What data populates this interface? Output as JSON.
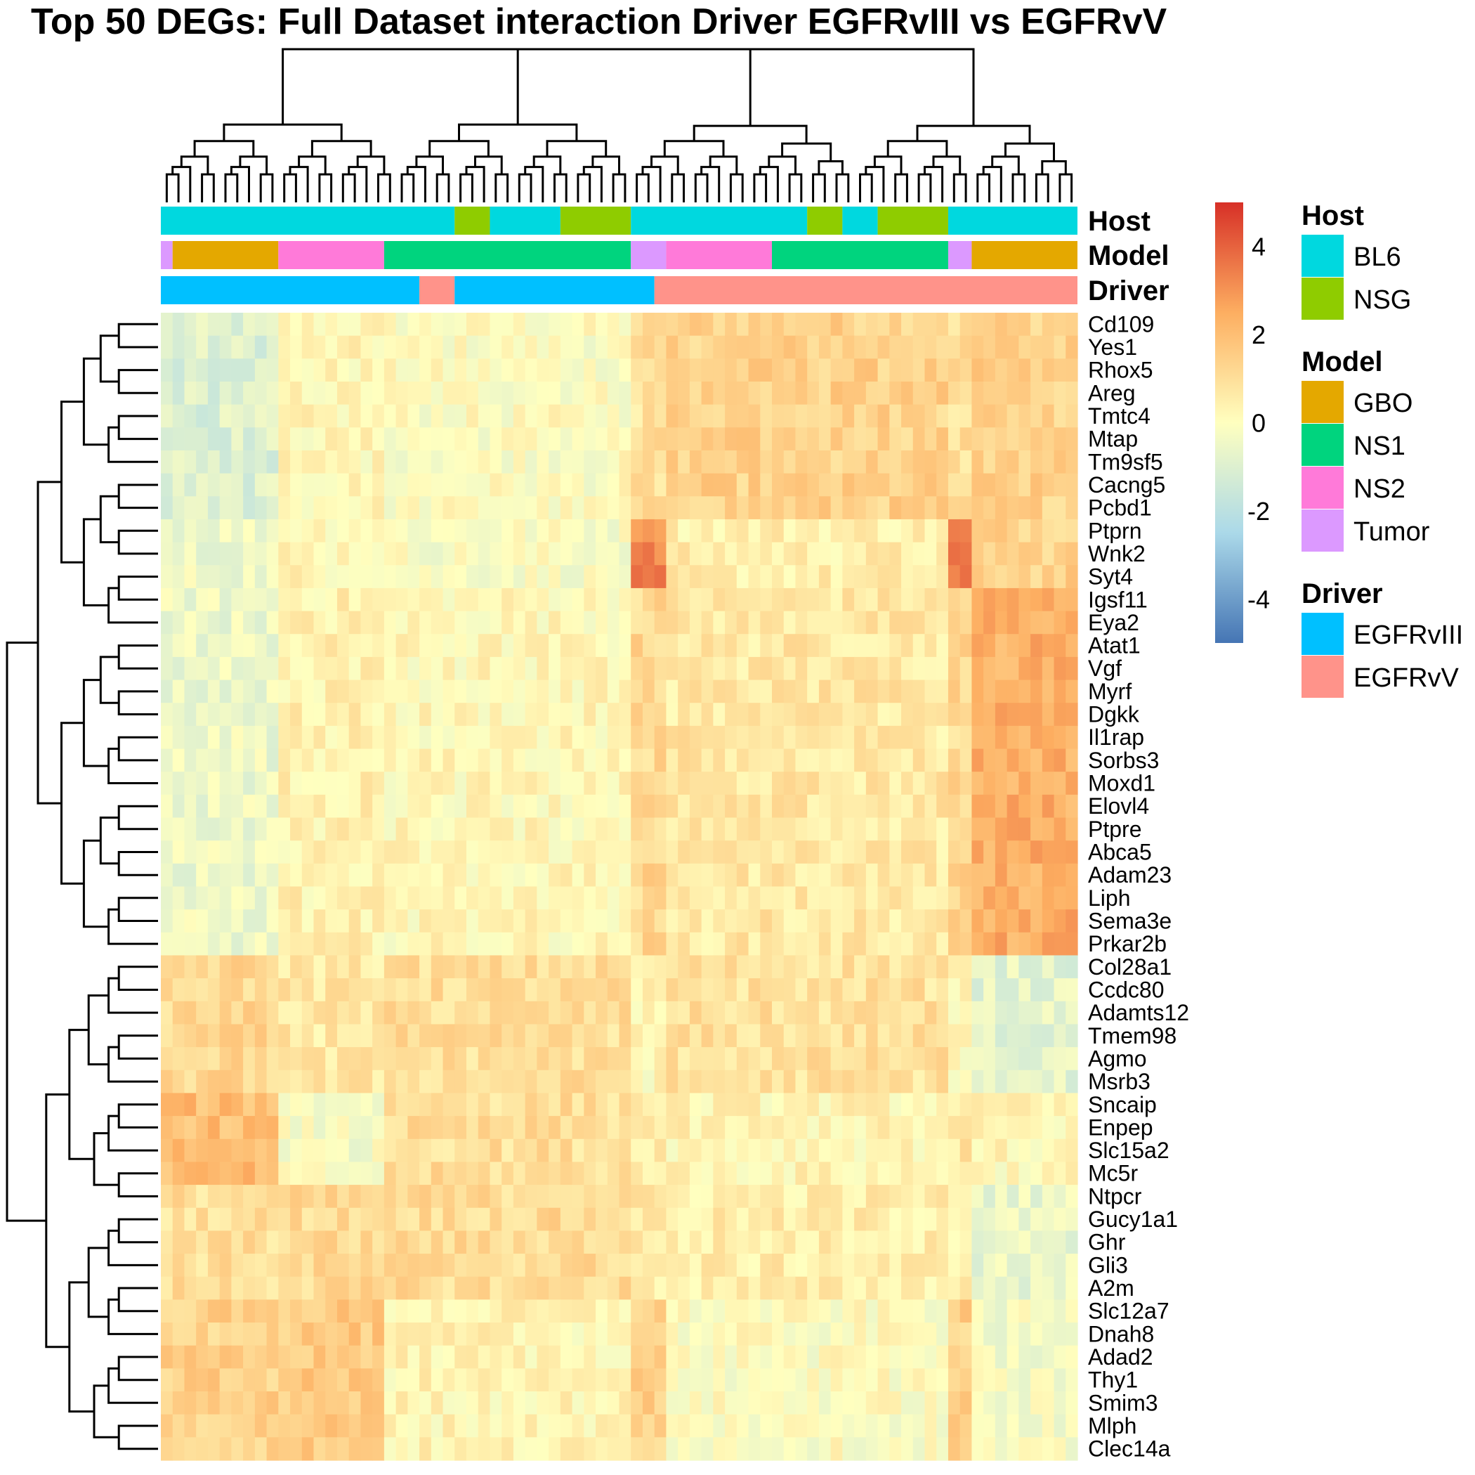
{
  "chart_data": {
    "type": "heatmap",
    "title": "Top 50 DEGs: Full Dataset interaction Driver EGFRvIII vs EGFRvV",
    "rows": [
      "Cd109",
      "Yes1",
      "Rhox5",
      "Areg",
      "Tmtc4",
      "Mtap",
      "Tm9sf5",
      "Cacng5",
      "Pcbd1",
      "Ptprn",
      "Wnk2",
      "Syt4",
      "Igsf11",
      "Eya2",
      "Atat1",
      "Vgf",
      "Myrf",
      "Dgkk",
      "Il1rap",
      "Sorbs3",
      "Moxd1",
      "Elovl4",
      "Ptpre",
      "Abca5",
      "Adam23",
      "Liph",
      "Sema3e",
      "Prkar2b",
      "Col28a1",
      "Ccdc80",
      "Adamts12",
      "Tmem98",
      "Agmo",
      "Msrb3",
      "Sncaip",
      "Enpep",
      "Slc15a2",
      "Mc5r",
      "Ntpcr",
      "Gucy1a1",
      "Ghr",
      "Gli3",
      "A2m",
      "Slc12a7",
      "Dnah8",
      "Adad2",
      "Thy1",
      "Smim3",
      "Mlph",
      "Clec14a"
    ],
    "n_columns": 78,
    "color_scale": {
      "min": -5,
      "max": 5,
      "ticks": [
        4,
        2,
        0,
        -2,
        -4
      ],
      "colors": [
        "#4575b4",
        "#abd9e9",
        "#ffffbf",
        "#fdae61",
        "#d73027"
      ]
    },
    "annotations": [
      {
        "name": "Host",
        "segments": [
          {
            "value": "BL6",
            "count": 25
          },
          {
            "value": "NSG",
            "count": 3
          },
          {
            "value": "BL6",
            "count": 6
          },
          {
            "value": "NSG",
            "count": 6
          },
          {
            "value": "BL6",
            "count": 15
          },
          {
            "value": "NSG",
            "count": 3
          },
          {
            "value": "BL6",
            "count": 3
          },
          {
            "value": "NSG",
            "count": 6
          },
          {
            "value": "BL6",
            "count": 11
          }
        ]
      },
      {
        "name": "Model",
        "segments": [
          {
            "value": "Tumor",
            "count": 1
          },
          {
            "value": "GBO",
            "count": 9
          },
          {
            "value": "NS2",
            "count": 9
          },
          {
            "value": "NS1",
            "count": 21
          },
          {
            "value": "Tumor",
            "count": 3
          },
          {
            "value": "NS2",
            "count": 9
          },
          {
            "value": "NS1",
            "count": 15
          },
          {
            "value": "Tumor",
            "count": 2
          },
          {
            "value": "GBO",
            "count": 9
          }
        ]
      },
      {
        "name": "Driver",
        "segments": [
          {
            "value": "EGFRvIII",
            "count": 22
          },
          {
            "value": "EGFRvV",
            "count": 3
          },
          {
            "value": "EGFRvIII",
            "count": 17
          },
          {
            "value": "EGFRvV",
            "count": 36
          }
        ]
      }
    ],
    "row_groups": [
      {
        "rows": [
          0,
          8
        ],
        "pattern": [
          -1.0,
          0.2,
          0.0,
          0.9,
          1.4
        ]
      },
      {
        "rows": [
          9,
          11
        ],
        "pattern": [
          -0.4,
          0.3,
          -0.1,
          3.2,
          0.5,
          1.4
        ]
      },
      {
        "rows": [
          12,
          27
        ],
        "pattern": [
          -0.5,
          0.4,
          0.2,
          1.2,
          0.7,
          2.4
        ]
      },
      {
        "rows": [
          28,
          33
        ],
        "pattern": [
          1.2,
          0.7,
          1.0,
          0.2,
          0.9,
          -0.8
        ]
      },
      {
        "rows": [
          34,
          37
        ],
        "pattern": [
          2.0,
          -0.2,
          1.0,
          0.7,
          0.3,
          0.2
        ]
      },
      {
        "rows": [
          38,
          42
        ],
        "pattern": [
          1.0,
          1.1,
          1.1,
          0.6,
          0.5,
          -0.6
        ]
      },
      {
        "rows": [
          43,
          49
        ],
        "pattern": [
          1.4,
          1.6,
          0.3,
          1.4,
          0.0,
          -0.3
        ]
      }
    ],
    "legend": {
      "placement": "right",
      "groups": [
        {
          "title": "Host",
          "items": [
            {
              "label": "BL6",
              "color": "#00d8df"
            },
            {
              "label": "NSG",
              "color": "#8fcc00"
            }
          ]
        },
        {
          "title": "Model",
          "items": [
            {
              "label": "GBO",
              "color": "#e4a800"
            },
            {
              "label": "NS1",
              "color": "#00d47e"
            },
            {
              "label": "NS2",
              "color": "#ff7ad9"
            },
            {
              "label": "Tumor",
              "color": "#dc99ff"
            }
          ]
        },
        {
          "title": "Driver",
          "items": [
            {
              "label": "EGFRvIII",
              "color": "#00c0ff"
            },
            {
              "label": "EGFRvV",
              "color": "#ff938a"
            }
          ]
        }
      ]
    }
  }
}
